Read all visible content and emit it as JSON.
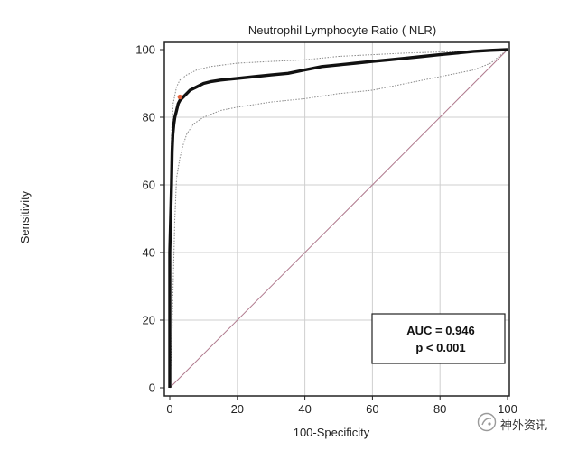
{
  "chart_data": {
    "type": "line",
    "title": "Neutrophil Lymphocyte Ratio ( NLR)",
    "xlabel": "100-Specificity",
    "ylabel": "Sensitivity",
    "xlim": [
      0,
      100
    ],
    "ylim": [
      0,
      100
    ],
    "xticks": [
      "0",
      "20",
      "40",
      "60",
      "80",
      "100"
    ],
    "yticks": [
      "0",
      "20",
      "40",
      "60",
      "80",
      "100"
    ],
    "grid": true,
    "series": [
      {
        "role": "roc",
        "color": "#111111",
        "style": "solid-thick",
        "x": [
          0,
          0,
          0.5,
          0.7,
          0.9,
          1.2,
          1.5,
          2,
          2.5,
          3,
          4,
          5,
          6,
          8,
          10,
          12,
          15,
          20,
          25,
          30,
          35,
          40,
          45,
          50,
          55,
          60,
          65,
          70,
          75,
          80,
          85,
          90,
          95,
          100
        ],
        "y": [
          0,
          40,
          60,
          70,
          75,
          78,
          80,
          82,
          84,
          85,
          86,
          87,
          88,
          89,
          90,
          90.5,
          91,
          91.5,
          92,
          92.5,
          93,
          94,
          95,
          95.5,
          96,
          96.5,
          97,
          97.5,
          98,
          98.5,
          99,
          99.5,
          99.8,
          100
        ]
      },
      {
        "role": "ci-upper",
        "color": "#8a8a8a",
        "style": "dotted",
        "x": [
          0,
          0.3,
          0.5,
          1,
          2,
          3,
          5,
          8,
          12,
          16,
          20,
          30,
          40,
          50,
          60,
          70,
          80,
          90,
          95,
          100
        ],
        "y": [
          0,
          60,
          75,
          84,
          89,
          91,
          92.5,
          94,
          95,
          95.5,
          96,
          96.5,
          97,
          98,
          98.5,
          99,
          99.3,
          99.6,
          99.8,
          100
        ]
      },
      {
        "role": "ci-lower",
        "color": "#8a8a8a",
        "style": "dotted",
        "x": [
          0,
          0.5,
          1,
          1.5,
          2,
          3,
          4,
          5,
          7,
          10,
          15,
          20,
          30,
          40,
          50,
          60,
          70,
          80,
          90,
          95,
          100
        ],
        "y": [
          0,
          10,
          30,
          50,
          62,
          68,
          72,
          75,
          78,
          80,
          82,
          83,
          84.5,
          85.5,
          87,
          88,
          90,
          92,
          94,
          96,
          100
        ]
      },
      {
        "role": "reference",
        "color": "#b07a8e",
        "style": "thin",
        "x": [
          0,
          100
        ],
        "y": [
          0,
          100
        ]
      }
    ],
    "marker": {
      "x": 3,
      "y": 86,
      "color": "#e0603a"
    },
    "annotations": [
      {
        "text": "AUC = 0.946"
      },
      {
        "text": "p < 0.001"
      }
    ]
  },
  "watermark": {
    "text": "神外资讯",
    "icon": "wechat-official-account-icon"
  }
}
